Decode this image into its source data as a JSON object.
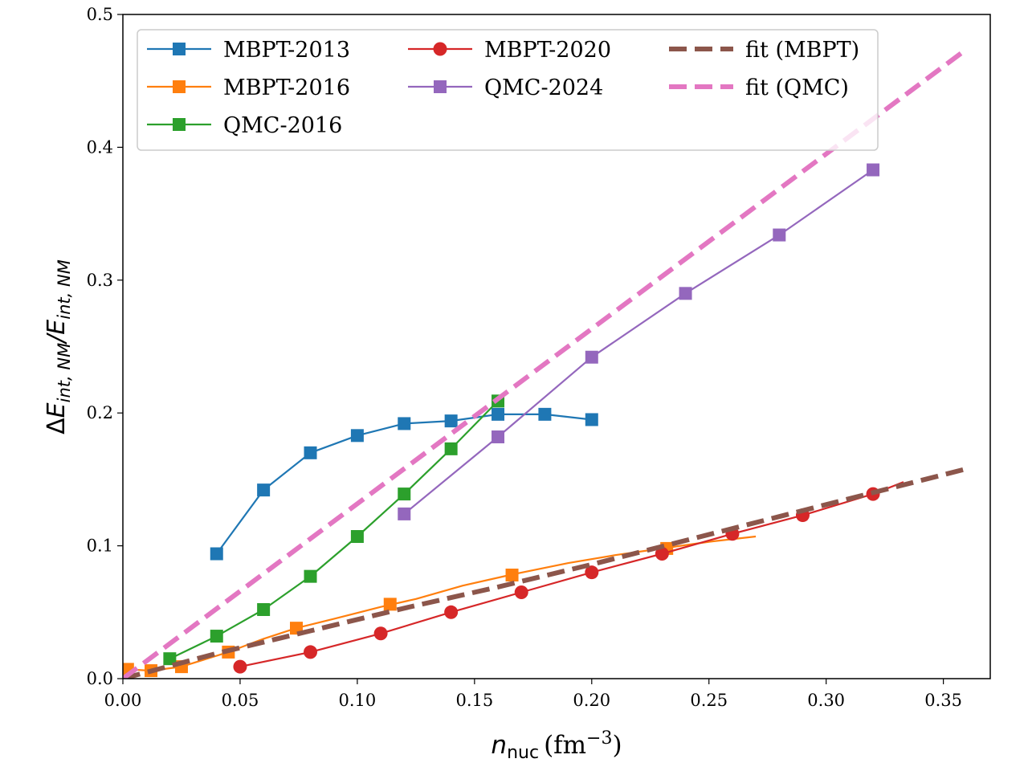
{
  "chart_data": {
    "type": "line",
    "xlabel": "n_nuc (fm^-3)",
    "ylabel": "ΔE_int,NM / E_int,NM",
    "xlabel_parts": {
      "var": "n",
      "sub": "nuc",
      "unit_pre": "(fm",
      "exp": "−3",
      "unit_post": ")"
    },
    "ylabel_parts": {
      "delta": "Δ",
      "e1": "E",
      "sub1": "int, NM",
      "slash": "/",
      "e2": "E",
      "sub2": "int, NM"
    },
    "xlim": [
      0.0,
      0.37
    ],
    "ylim": [
      0.0,
      0.5
    ],
    "xticks": [
      0.0,
      0.05,
      0.1,
      0.15,
      0.2,
      0.25,
      0.3,
      0.35
    ],
    "xtick_labels": [
      "0.00",
      "0.05",
      "0.10",
      "0.15",
      "0.20",
      "0.25",
      "0.30",
      "0.35"
    ],
    "yticks": [
      0.0,
      0.1,
      0.2,
      0.3,
      0.4,
      0.5
    ],
    "ytick_labels": [
      "0.0",
      "0.1",
      "0.2",
      "0.3",
      "0.4",
      "0.5"
    ],
    "grid": false,
    "legend_placement": "top-left",
    "series": [
      {
        "name": "MBPT-2013",
        "color": "#1f77b4",
        "marker": "square",
        "style": "solid",
        "points": [
          [
            0.04,
            0.094
          ],
          [
            0.06,
            0.142
          ],
          [
            0.08,
            0.17
          ],
          [
            0.1,
            0.183
          ],
          [
            0.12,
            0.192
          ],
          [
            0.14,
            0.194
          ],
          [
            0.16,
            0.199
          ],
          [
            0.18,
            0.199
          ],
          [
            0.2,
            0.195
          ]
        ]
      },
      {
        "name": "MBPT-2016",
        "color": "#ff7f0e",
        "marker": "square",
        "style": "solid",
        "line": [
          [
            0.002,
            0.007
          ],
          [
            0.012,
            0.006
          ],
          [
            0.025,
            0.009
          ],
          [
            0.045,
            0.02
          ],
          [
            0.06,
            0.03
          ],
          [
            0.074,
            0.038
          ],
          [
            0.09,
            0.045
          ],
          [
            0.11,
            0.054
          ],
          [
            0.125,
            0.06
          ],
          [
            0.145,
            0.07
          ],
          [
            0.165,
            0.078
          ],
          [
            0.19,
            0.087
          ],
          [
            0.21,
            0.093
          ],
          [
            0.23,
            0.098
          ],
          [
            0.25,
            0.103
          ],
          [
            0.27,
            0.107
          ]
        ],
        "points": [
          [
            0.002,
            0.007
          ],
          [
            0.012,
            0.006
          ],
          [
            0.025,
            0.009
          ],
          [
            0.045,
            0.02
          ],
          [
            0.074,
            0.038
          ],
          [
            0.114,
            0.056
          ],
          [
            0.166,
            0.078
          ],
          [
            0.232,
            0.098
          ]
        ]
      },
      {
        "name": "QMC-2016",
        "color": "#2ca02c",
        "marker": "square",
        "style": "solid",
        "points": [
          [
            0.02,
            0.015
          ],
          [
            0.04,
            0.032
          ],
          [
            0.06,
            0.052
          ],
          [
            0.08,
            0.077
          ],
          [
            0.1,
            0.107
          ],
          [
            0.12,
            0.139
          ],
          [
            0.14,
            0.173
          ],
          [
            0.16,
            0.209
          ]
        ]
      },
      {
        "name": "MBPT-2020",
        "color": "#d62728",
        "marker": "circle",
        "style": "solid",
        "points": [
          [
            0.05,
            0.009
          ],
          [
            0.08,
            0.02
          ],
          [
            0.11,
            0.034
          ],
          [
            0.14,
            0.05
          ],
          [
            0.17,
            0.065
          ],
          [
            0.2,
            0.08
          ],
          [
            0.23,
            0.094
          ],
          [
            0.26,
            0.109
          ],
          [
            0.29,
            0.123
          ],
          [
            0.32,
            0.139
          ]
        ],
        "line_extra": [
          [
            0.333,
            0.148
          ]
        ]
      },
      {
        "name": "QMC-2024",
        "color": "#9467bd",
        "marker": "square",
        "style": "solid",
        "points": [
          [
            0.12,
            0.124
          ],
          [
            0.16,
            0.182
          ],
          [
            0.2,
            0.242
          ],
          [
            0.24,
            0.29
          ],
          [
            0.28,
            0.334
          ],
          [
            0.32,
            0.383
          ]
        ]
      },
      {
        "name": "fit (MBPT)",
        "color": "#8c564b",
        "marker": "none",
        "style": "dashed",
        "points": [
          [
            0.0,
            0.0
          ],
          [
            0.04,
            0.019
          ],
          [
            0.08,
            0.036
          ],
          [
            0.12,
            0.053
          ],
          [
            0.16,
            0.069
          ],
          [
            0.2,
            0.086
          ],
          [
            0.24,
            0.104
          ],
          [
            0.28,
            0.122
          ],
          [
            0.32,
            0.14
          ],
          [
            0.36,
            0.158
          ]
        ]
      },
      {
        "name": "fit (QMC)",
        "color": "#e377c2",
        "marker": "none",
        "style": "dashed",
        "points": [
          [
            0.0,
            0.0
          ],
          [
            0.36,
            0.474
          ]
        ]
      }
    ]
  }
}
